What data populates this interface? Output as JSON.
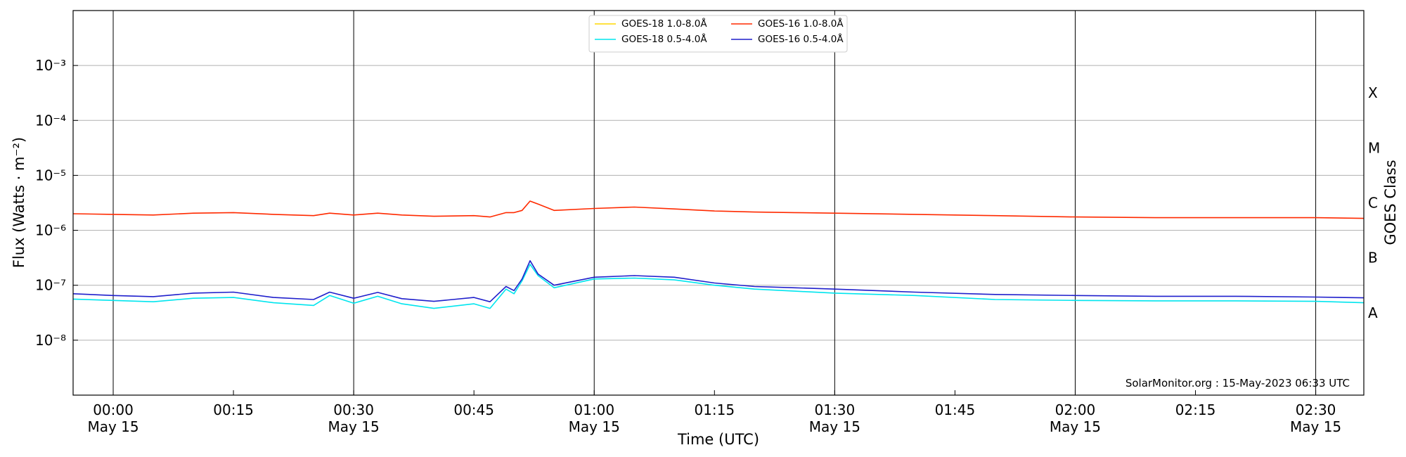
{
  "chart_data": {
    "type": "line",
    "xlabel": "Time (UTC)",
    "ylabel": "Flux (Watts · m⁻²)",
    "y2label": "GOES Class",
    "yscale": "log",
    "ylim": [
      1e-09,
      0.01
    ],
    "y_ticks": [
      {
        "value": 1e-08,
        "label": "10⁻⁸"
      },
      {
        "value": 1e-07,
        "label": "10⁻⁷"
      },
      {
        "value": 1e-06,
        "label": "10⁻⁶"
      },
      {
        "value": 1e-05,
        "label": "10⁻⁵"
      },
      {
        "value": 0.0001,
        "label": "10⁻⁴"
      },
      {
        "value": 0.001,
        "label": "10⁻³"
      }
    ],
    "xlim": [
      "2023-05-15T23:55:00",
      "2023-05-16T02:36:00"
    ],
    "x_ticks": [
      {
        "t": "2023-05-15T00:00",
        "label": "00:00",
        "sublabel": "May 15"
      },
      {
        "t": "2023-05-15T00:15",
        "label": "00:15",
        "sublabel": ""
      },
      {
        "t": "2023-05-15T00:30",
        "label": "00:30",
        "sublabel": "May 15"
      },
      {
        "t": "2023-05-15T00:45",
        "label": "00:45",
        "sublabel": ""
      },
      {
        "t": "2023-05-15T01:00",
        "label": "01:00",
        "sublabel": "May 15"
      },
      {
        "t": "2023-05-15T01:15",
        "label": "01:15",
        "sublabel": ""
      },
      {
        "t": "2023-05-15T01:30",
        "label": "01:30",
        "sublabel": "May 15"
      },
      {
        "t": "2023-05-15T01:45",
        "label": "01:45",
        "sublabel": ""
      },
      {
        "t": "2023-05-15T02:00",
        "label": "02:00",
        "sublabel": "May 15"
      },
      {
        "t": "2023-05-15T02:15",
        "label": "02:15",
        "sublabel": ""
      },
      {
        "t": "2023-05-15T02:30",
        "label": "02:30",
        "sublabel": "May 15"
      }
    ],
    "xlim_display": [
      "May 14 23:55",
      "May 15 02:36"
    ],
    "vlines": [
      "00:00",
      "00:30",
      "01:00",
      "01:30",
      "02:00",
      "02:30"
    ],
    "grid": "horizontal at each decade",
    "goes_classes": [
      {
        "label": "A",
        "low": 1e-08,
        "high": 1e-07
      },
      {
        "label": "B",
        "low": 1e-07,
        "high": 1e-06
      },
      {
        "label": "C",
        "low": 1e-06,
        "high": 1e-05
      },
      {
        "label": "M",
        "low": 1e-05,
        "high": 0.0001
      },
      {
        "label": "X",
        "low": 0.0001,
        "high": 0.001
      }
    ],
    "legend_position": "top-center",
    "x_minutes": [
      -5,
      0,
      5,
      10,
      15,
      20,
      25,
      27,
      30,
      33,
      36,
      40,
      45,
      47,
      49,
      50,
      51,
      52,
      53,
      55,
      60,
      65,
      70,
      75,
      80,
      85,
      90,
      100,
      110,
      120,
      130,
      140,
      150,
      156
    ],
    "series": [
      {
        "name": "GOES-18 1.0-8.0Å",
        "color": "#ffd700",
        "values": null
      },
      {
        "name": "GOES-18 0.5-4.0Å",
        "color": "#00e5ee",
        "values": [
          5.6e-08,
          5.3e-08,
          5e-08,
          5.8e-08,
          6e-08,
          4.8e-08,
          4.3e-08,
          6.5e-08,
          4.7e-08,
          6.3e-08,
          4.6e-08,
          3.8e-08,
          4.6e-08,
          3.8e-08,
          8.5e-08,
          7e-08,
          1.2e-07,
          2.4e-07,
          1.5e-07,
          9e-08,
          1.3e-07,
          1.35e-07,
          1.25e-07,
          1e-07,
          8.5e-08,
          7.8e-08,
          7.2e-08,
          6.5e-08,
          5.5e-08,
          5.3e-08,
          5.2e-08,
          5.2e-08,
          5.1e-08,
          4.8e-08
        ]
      },
      {
        "name": "GOES-16 1.0-8.0Å",
        "color": "#ff2a00",
        "values": [
          2e-06,
          1.95e-06,
          1.9e-06,
          2.05e-06,
          2.1e-06,
          1.95e-06,
          1.85e-06,
          2.05e-06,
          1.9e-06,
          2.05e-06,
          1.9e-06,
          1.8e-06,
          1.85e-06,
          1.75e-06,
          2.1e-06,
          2.1e-06,
          2.3e-06,
          3.4e-06,
          3e-06,
          2.3e-06,
          2.5e-06,
          2.65e-06,
          2.45e-06,
          2.25e-06,
          2.15e-06,
          2.1e-06,
          2.05e-06,
          1.95e-06,
          1.85e-06,
          1.75e-06,
          1.7e-06,
          1.7e-06,
          1.7e-06,
          1.65e-06
        ]
      },
      {
        "name": "GOES-16 0.5-4.0Å",
        "color": "#1f1fcc",
        "values": [
          7e-08,
          6.5e-08,
          6.2e-08,
          7.2e-08,
          7.5e-08,
          6e-08,
          5.5e-08,
          7.5e-08,
          5.8e-08,
          7.4e-08,
          5.7e-08,
          5.1e-08,
          6e-08,
          5e-08,
          9.5e-08,
          8e-08,
          1.3e-07,
          2.8e-07,
          1.6e-07,
          1e-07,
          1.4e-07,
          1.5e-07,
          1.4e-07,
          1.1e-07,
          9.5e-08,
          9e-08,
          8.5e-08,
          7.5e-08,
          6.8e-08,
          6.5e-08,
          6.3e-08,
          6.3e-08,
          6.1e-08,
          5.9e-08
        ]
      }
    ]
  },
  "credit": "SolarMonitor.org : 15-May-2023 06:33 UTC"
}
